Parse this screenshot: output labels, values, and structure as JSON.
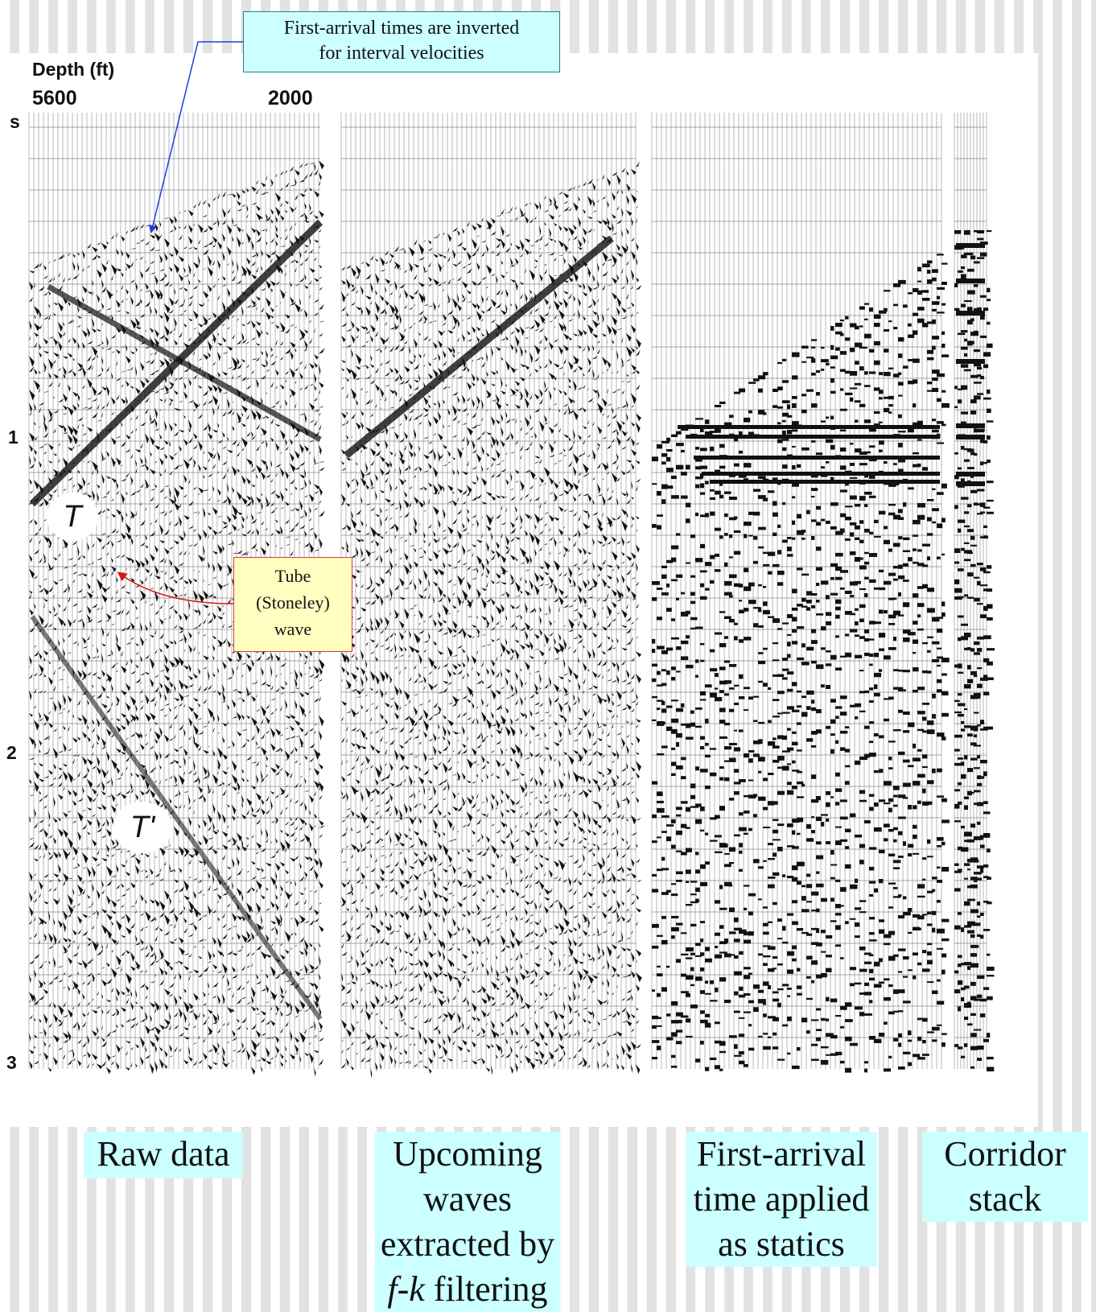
{
  "axis": {
    "depth_label": "Depth (ft)",
    "depth_left": "5600",
    "depth_right": "2000",
    "time_unit": "s",
    "time_ticks": [
      "1",
      "2",
      "3"
    ]
  },
  "callouts": {
    "first_arrival_line1": "First-arrival times are inverted",
    "first_arrival_line2": "for interval velocities",
    "tube_line1": "Tube",
    "tube_line2": "(Stoneley)",
    "tube_line3": "wave"
  },
  "markers": {
    "t": "T",
    "t_prime": "T'"
  },
  "captions": {
    "raw": "Raw data",
    "upcoming_line1": "Upcoming",
    "upcoming_line2": "waves",
    "upcoming_line3": "extracted by",
    "upcoming_line4_italic": "f-k",
    "upcoming_line4_rest": " filtering",
    "first_arrival_line1": "First-arrival",
    "first_arrival_line2": "time applied",
    "first_arrival_line3": "as statics",
    "corridor_line1": "Corridor",
    "corridor_line2": "stack"
  },
  "colors": {
    "callout_blue": "#ccffff",
    "callout_yellow": "#ffffc2",
    "arrow_blue": "#1f3fdc",
    "arrow_red": "#d21b1b"
  }
}
